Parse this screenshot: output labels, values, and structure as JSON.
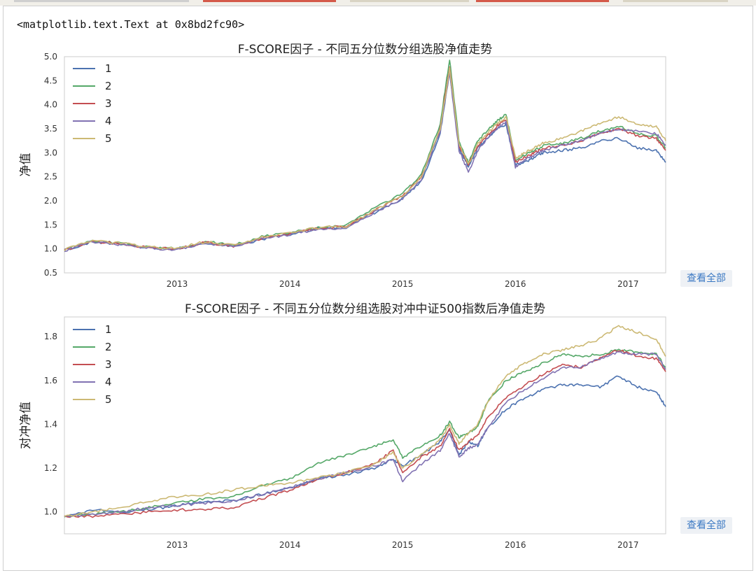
{
  "output_repr": "<matplotlib.text.Text at 0x8bd2fc90>",
  "view_all_label": "查看全部",
  "series_colors": [
    "#4c72b0",
    "#55a868",
    "#c44e52",
    "#8172b2",
    "#ccb974"
  ],
  "chart_data": [
    {
      "type": "line",
      "title": "F-SCORE因子 - 不同五分位数分组选股净值走势",
      "xlabel": "",
      "ylabel": "净值",
      "x_ticks": [
        "2013",
        "2014",
        "2015",
        "2016",
        "2017"
      ],
      "y_ticks": [
        "0.5",
        "1.0",
        "1.5",
        "2.0",
        "2.5",
        "3.0",
        "3.5",
        "4.0",
        "4.5",
        "5.0"
      ],
      "ylim": [
        0.5,
        5.0
      ],
      "xlim": [
        "2012-01",
        "2017-05"
      ],
      "legend": "top-left",
      "grid": false,
      "x": [
        "2012-01",
        "2012-04",
        "2012-07",
        "2012-10",
        "2013-01",
        "2013-04",
        "2013-07",
        "2013-10",
        "2014-01",
        "2014-04",
        "2014-07",
        "2014-10",
        "2015-01",
        "2015-03",
        "2015-05",
        "2015-06",
        "2015-07",
        "2015-08",
        "2015-09",
        "2015-10",
        "2015-11",
        "2015-12",
        "2016-01",
        "2016-02",
        "2016-03",
        "2016-04",
        "2016-06",
        "2016-08",
        "2016-10",
        "2016-12",
        "2017-02",
        "2017-04",
        "2017-05"
      ],
      "series": [
        {
          "name": "1",
          "values": [
            0.97,
            1.15,
            1.1,
            1.02,
            1.0,
            1.12,
            1.05,
            1.2,
            1.3,
            1.42,
            1.45,
            1.75,
            2.05,
            2.4,
            3.4,
            4.7,
            3.1,
            2.7,
            3.1,
            3.3,
            3.5,
            3.6,
            2.75,
            2.8,
            2.9,
            3.0,
            3.05,
            3.1,
            3.25,
            3.3,
            3.1,
            3.05,
            2.8
          ]
        },
        {
          "name": "2",
          "values": [
            0.98,
            1.18,
            1.12,
            1.03,
            1.02,
            1.15,
            1.08,
            1.25,
            1.33,
            1.45,
            1.48,
            1.85,
            2.15,
            2.55,
            3.6,
            4.95,
            3.25,
            2.8,
            3.25,
            3.45,
            3.65,
            3.8,
            2.85,
            2.95,
            3.05,
            3.15,
            3.2,
            3.3,
            3.45,
            3.55,
            3.4,
            3.35,
            3.1
          ]
        },
        {
          "name": "3",
          "values": [
            0.97,
            1.16,
            1.1,
            1.02,
            1.0,
            1.13,
            1.06,
            1.22,
            1.31,
            1.43,
            1.46,
            1.8,
            2.1,
            2.5,
            3.5,
            4.8,
            3.15,
            2.75,
            3.15,
            3.35,
            3.55,
            3.7,
            2.8,
            2.9,
            3.0,
            3.1,
            3.15,
            3.25,
            3.4,
            3.5,
            3.35,
            3.3,
            3.05
          ]
        },
        {
          "name": "4",
          "values": [
            0.96,
            1.15,
            1.09,
            1.01,
            0.99,
            1.12,
            1.05,
            1.2,
            1.3,
            1.41,
            1.44,
            1.76,
            2.05,
            2.45,
            3.45,
            4.65,
            3.05,
            2.6,
            3.05,
            3.3,
            3.5,
            3.65,
            2.7,
            2.85,
            2.95,
            3.05,
            3.15,
            3.25,
            3.4,
            3.5,
            3.45,
            3.4,
            3.15
          ]
        },
        {
          "name": "5",
          "values": [
            0.98,
            1.17,
            1.12,
            1.04,
            1.01,
            1.15,
            1.08,
            1.25,
            1.33,
            1.44,
            1.47,
            1.8,
            2.1,
            2.5,
            3.5,
            4.75,
            3.2,
            2.75,
            3.2,
            3.4,
            3.6,
            3.75,
            2.9,
            3.0,
            3.1,
            3.2,
            3.3,
            3.45,
            3.6,
            3.75,
            3.6,
            3.55,
            3.25
          ]
        }
      ]
    },
    {
      "type": "line",
      "title": "F-SCORE因子 - 不同五分位数分组选股对冲中证500指数后净值走势",
      "xlabel": "",
      "ylabel": "对冲净值",
      "x_ticks": [
        "2013",
        "2014",
        "2015",
        "2016",
        "2017"
      ],
      "y_ticks": [
        "1.0",
        "1.2",
        "1.4",
        "1.6",
        "1.8"
      ],
      "ylim": [
        0.9,
        1.89
      ],
      "xlim": [
        "2012-01",
        "2017-05"
      ],
      "legend": "top-left",
      "grid": false,
      "x": [
        "2012-01",
        "2012-04",
        "2012-07",
        "2012-10",
        "2013-01",
        "2013-04",
        "2013-07",
        "2013-10",
        "2014-01",
        "2014-04",
        "2014-07",
        "2014-10",
        "2014-12",
        "2015-01",
        "2015-03",
        "2015-05",
        "2015-06",
        "2015-07",
        "2015-08",
        "2015-09",
        "2015-10",
        "2015-12",
        "2016-02",
        "2016-04",
        "2016-06",
        "2016-08",
        "2016-10",
        "2016-12",
        "2017-02",
        "2017-04",
        "2017-05"
      ],
      "series": [
        {
          "name": "1",
          "values": [
            0.98,
            1.01,
            1.0,
            1.01,
            1.03,
            1.05,
            1.05,
            1.08,
            1.11,
            1.15,
            1.17,
            1.2,
            1.24,
            1.21,
            1.26,
            1.32,
            1.38,
            1.26,
            1.32,
            1.3,
            1.38,
            1.47,
            1.52,
            1.56,
            1.58,
            1.58,
            1.57,
            1.62,
            1.57,
            1.55,
            1.48
          ]
        },
        {
          "name": "2",
          "values": [
            0.98,
            0.99,
            1.0,
            1.02,
            1.04,
            1.06,
            1.07,
            1.12,
            1.15,
            1.22,
            1.26,
            1.3,
            1.33,
            1.25,
            1.3,
            1.35,
            1.41,
            1.34,
            1.36,
            1.39,
            1.5,
            1.6,
            1.64,
            1.68,
            1.72,
            1.71,
            1.72,
            1.74,
            1.73,
            1.72,
            1.66
          ]
        },
        {
          "name": "3",
          "values": [
            0.98,
            0.98,
            0.99,
            1.0,
            1.01,
            1.01,
            1.02,
            1.06,
            1.1,
            1.15,
            1.18,
            1.22,
            1.28,
            1.18,
            1.25,
            1.3,
            1.38,
            1.28,
            1.32,
            1.35,
            1.43,
            1.52,
            1.58,
            1.63,
            1.67,
            1.66,
            1.7,
            1.74,
            1.71,
            1.7,
            1.64
          ]
        },
        {
          "name": "4",
          "values": [
            0.98,
            0.99,
            1.0,
            1.02,
            1.03,
            1.04,
            1.05,
            1.08,
            1.11,
            1.15,
            1.18,
            1.21,
            1.24,
            1.14,
            1.22,
            1.28,
            1.36,
            1.25,
            1.29,
            1.31,
            1.38,
            1.5,
            1.56,
            1.61,
            1.66,
            1.66,
            1.7,
            1.73,
            1.72,
            1.72,
            1.65
          ]
        },
        {
          "name": "5",
          "values": [
            0.98,
            1.0,
            1.02,
            1.05,
            1.07,
            1.08,
            1.1,
            1.12,
            1.13,
            1.16,
            1.18,
            1.22,
            1.27,
            1.2,
            1.26,
            1.33,
            1.4,
            1.31,
            1.36,
            1.4,
            1.5,
            1.62,
            1.68,
            1.72,
            1.74,
            1.76,
            1.79,
            1.85,
            1.82,
            1.79,
            1.71
          ]
        }
      ]
    }
  ]
}
